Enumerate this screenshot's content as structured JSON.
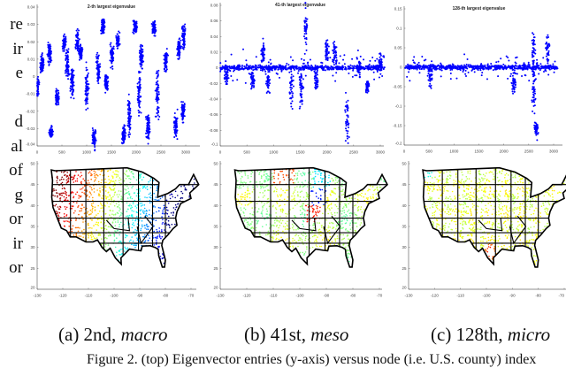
{
  "side_text": [
    "re",
    "ir",
    "e",
    "",
    "d",
    "al",
    "of",
    "g",
    "or",
    "ir",
    "or"
  ],
  "captions": [
    {
      "prefix": "(a) 2nd, ",
      "emph": "macro"
    },
    {
      "prefix": "(b) 41st, ",
      "emph": "meso"
    },
    {
      "prefix": "(c) 128th, ",
      "emph": "micro"
    }
  ],
  "figure_caption": "Figure 2.  (top) Eigenvector entries (y-axis) versus node (i.e. U.S. county) index",
  "chart_data": [
    {
      "type": "scatter",
      "title": "2-th largest eigenvalue",
      "xlim": [
        0,
        3000
      ],
      "ylim": [
        -0.04,
        0.04
      ],
      "xticks": [
        "0",
        "500",
        "1000",
        "1500",
        "2000",
        "2500",
        "3000"
      ],
      "yticks": [
        "0.04",
        "0.03",
        "0.02",
        "0.01",
        "0",
        "-0.01",
        "-0.02",
        "-0.03",
        "-0.04"
      ],
      "color": "#0000ff",
      "clusters": [
        [
          0,
          -0.007,
          0.004
        ],
        [
          100,
          0.007,
          0.004
        ],
        [
          250,
          0.013,
          0.004
        ],
        [
          280,
          -0.032,
          0.002
        ],
        [
          400,
          -0.012,
          0.003
        ],
        [
          550,
          0.019,
          0.003
        ],
        [
          610,
          0.007,
          0.006
        ],
        [
          710,
          -0.003,
          0.006
        ],
        [
          810,
          0.02,
          0.004
        ],
        [
          880,
          0.014,
          0.003
        ],
        [
          1000,
          -0.007,
          0.008
        ],
        [
          1150,
          -0.035,
          0.004
        ],
        [
          1230,
          0.004,
          0.006
        ],
        [
          1330,
          0.029,
          0.003
        ],
        [
          1400,
          -0.004,
          0.003
        ],
        [
          1510,
          0.013,
          0.005
        ],
        [
          1630,
          0.021,
          0.003
        ],
        [
          1750,
          -0.034,
          0.004
        ],
        [
          1860,
          -0.023,
          0.007
        ],
        [
          1980,
          0.029,
          0.003
        ],
        [
          2060,
          -0.01,
          0.008
        ],
        [
          2100,
          0.012,
          0.005
        ],
        [
          2240,
          -0.029,
          0.005
        ],
        [
          2360,
          0.028,
          0.003
        ],
        [
          2430,
          -0.01,
          0.01
        ],
        [
          2600,
          0.009,
          0.004
        ],
        [
          2800,
          -0.027,
          0.005
        ],
        [
          2860,
          0.016,
          0.004
        ],
        [
          2960,
          0.023,
          0.005
        ],
        [
          2950,
          -0.02,
          0.004
        ]
      ]
    },
    {
      "type": "scatter",
      "title": "41-th largest eigenvalue",
      "xlim": [
        0,
        3000
      ],
      "ylim": [
        -0.1,
        0.08
      ],
      "xticks": [
        "0",
        "500",
        "1000",
        "1500",
        "2000",
        "2500",
        "3000"
      ],
      "yticks": [
        "0.08",
        "0.06",
        "0.04",
        "0.02",
        "0",
        "-0.02",
        "-0.04",
        "-0.06",
        "-0.08",
        "-0.1"
      ],
      "color": "#0000ff",
      "baseline_spread": 0.004,
      "clusters": [
        [
          1600,
          0.05,
          0.018
        ],
        [
          2380,
          -0.06,
          0.02
        ],
        [
          1520,
          -0.025,
          0.02
        ],
        [
          800,
          0.018,
          0.012
        ],
        [
          900,
          -0.018,
          0.01
        ],
        [
          2000,
          0.022,
          0.01
        ],
        [
          2150,
          0.018,
          0.01
        ],
        [
          1330,
          -0.02,
          0.02
        ],
        [
          600,
          -0.015,
          0.01
        ],
        [
          2760,
          -0.025,
          0.006
        ],
        [
          120,
          -0.01,
          0.01
        ],
        [
          1800,
          -0.015,
          0.01
        ],
        [
          2600,
          0,
          0.008
        ],
        [
          3000,
          0.005,
          0.008
        ]
      ]
    },
    {
      "type": "scatter",
      "title": "128-th largest eigenvalue",
      "xlim": [
        0,
        3000
      ],
      "ylim": [
        -0.2,
        0.15
      ],
      "xticks": [
        "0",
        "500",
        "1000",
        "1500",
        "2000",
        "2500",
        "3000"
      ],
      "yticks": [
        "0.15",
        "0.1",
        "0.05",
        "0",
        "-0.05",
        "-0.1",
        "-0.15",
        "-0.2"
      ],
      "color": "#0000ff",
      "baseline_spread": 0.008,
      "clusters": [
        [
          2600,
          0.04,
          0.04
        ],
        [
          2880,
          0.04,
          0.035
        ],
        [
          530,
          -0.02,
          0.02
        ],
        [
          2600,
          -0.05,
          0.05
        ],
        [
          2650,
          -0.16,
          0.015
        ],
        [
          2200,
          -0.04,
          0.02
        ]
      ]
    },
    {
      "type": "scatter",
      "title": "",
      "xlim": [
        -130,
        -65
      ],
      "ylim": [
        20,
        50
      ],
      "xticks": [
        "-130",
        "-120",
        "-110",
        "-100",
        "-90",
        "-80",
        "-70"
      ],
      "yticks": [
        "50",
        "45",
        "40",
        "35",
        "30",
        "25",
        "20"
      ],
      "colormap": "jet",
      "pattern": "macro"
    },
    {
      "type": "scatter",
      "title": "",
      "xlim": [
        -130,
        -65
      ],
      "ylim": [
        20,
        50
      ],
      "xticks": [
        "-130",
        "-120",
        "-110",
        "-100",
        "-90",
        "-80",
        "-70"
      ],
      "yticks": [
        "50",
        "45",
        "40",
        "35",
        "30",
        "25",
        "20"
      ],
      "colormap": "jet",
      "pattern": "meso"
    },
    {
      "type": "scatter",
      "title": "",
      "xlim": [
        -130,
        -65
      ],
      "ylim": [
        20,
        50
      ],
      "xticks": [
        "-130",
        "-120",
        "-110",
        "-100",
        "-90",
        "-80",
        "-70"
      ],
      "yticks": [
        "50",
        "45",
        "40",
        "35",
        "30",
        "25",
        "20"
      ],
      "colormap": "jet",
      "pattern": "micro"
    }
  ]
}
